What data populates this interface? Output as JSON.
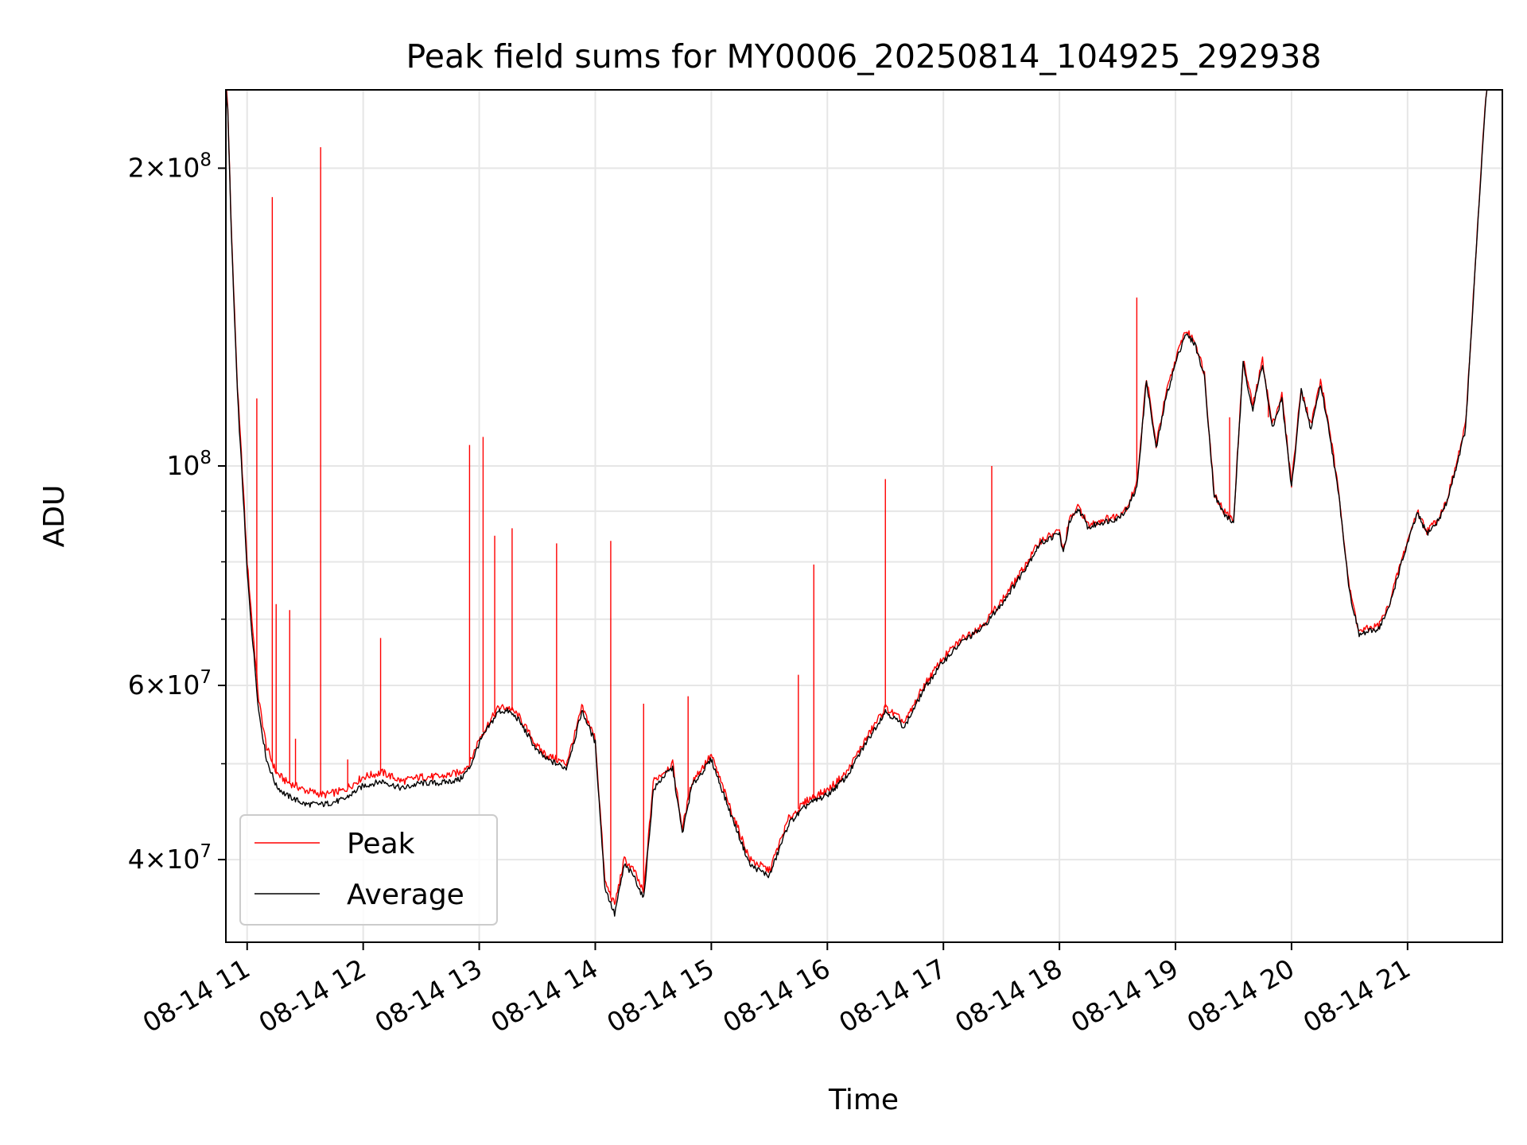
{
  "chart_data": {
    "type": "line",
    "title": "Peak field sums for MY0006_20250814_104925_292938",
    "xlabel": "Time",
    "ylabel": "ADU",
    "x_range": [
      "2025-08-14 10:49",
      "2025-08-14 21:49"
    ],
    "x_ticks": [
      {
        "t": "2025-08-14 11:00",
        "label": "08-14 11"
      },
      {
        "t": "2025-08-14 12:00",
        "label": "08-14 12"
      },
      {
        "t": "2025-08-14 13:00",
        "label": "08-14 13"
      },
      {
        "t": "2025-08-14 14:00",
        "label": "08-14 14"
      },
      {
        "t": "2025-08-14 15:00",
        "label": "08-14 15"
      },
      {
        "t": "2025-08-14 16:00",
        "label": "08-14 16"
      },
      {
        "t": "2025-08-14 17:00",
        "label": "08-14 17"
      },
      {
        "t": "2025-08-14 18:00",
        "label": "08-14 18"
      },
      {
        "t": "2025-08-14 19:00",
        "label": "08-14 19"
      },
      {
        "t": "2025-08-14 20:00",
        "label": "08-14 20"
      },
      {
        "t": "2025-08-14 21:00",
        "label": "08-14 21"
      }
    ],
    "y_scale": "log",
    "ylim": [
      33000000,
      240000000
    ],
    "y_major_ticks": [
      {
        "v": 40000000,
        "mant": "4",
        "exp": "7"
      },
      {
        "v": 60000000,
        "mant": "6",
        "exp": "7"
      },
      {
        "v": 100000000,
        "mant": "",
        "exp": "8"
      },
      {
        "v": 200000000,
        "mant": "2",
        "exp": "8"
      }
    ],
    "y_minor_ticks": [
      50000000,
      70000000,
      80000000,
      90000000
    ],
    "grid": true,
    "legend_position": "lower-left",
    "series": [
      {
        "name": "Peak",
        "color": "#ff0000",
        "x": [
          "10:48",
          "10:50",
          "10:52",
          "10:55",
          "10:58",
          "11:00",
          "11:03",
          "11:06",
          "11:10",
          "11:15",
          "11:20",
          "11:30",
          "11:40",
          "11:50",
          "12:00",
          "12:10",
          "12:20",
          "12:30",
          "12:40",
          "12:50",
          "12:55",
          "13:00",
          "13:05",
          "13:10",
          "13:15",
          "13:20",
          "13:25",
          "13:30",
          "13:35",
          "13:40",
          "13:45",
          "13:50",
          "13:53",
          "13:55",
          "14:00",
          "14:05",
          "14:10",
          "14:15",
          "14:20",
          "14:25",
          "14:30",
          "14:35",
          "14:40",
          "14:45",
          "14:50",
          "15:00",
          "15:10",
          "15:20",
          "15:30",
          "15:40",
          "15:50",
          "16:00",
          "16:10",
          "16:20",
          "16:30",
          "16:40",
          "16:50",
          "17:00",
          "17:10",
          "17:20",
          "17:30",
          "17:40",
          "17:50",
          "18:00",
          "18:02",
          "18:05",
          "18:10",
          "18:15",
          "18:20",
          "18:25",
          "18:30",
          "18:35",
          "18:40",
          "18:45",
          "18:50",
          "18:55",
          "19:00",
          "19:05",
          "19:10",
          "19:15",
          "19:20",
          "19:25",
          "19:30",
          "19:35",
          "19:40",
          "19:45",
          "19:50",
          "19:55",
          "20:00",
          "20:05",
          "20:10",
          "20:15",
          "20:20",
          "20:25",
          "20:30",
          "20:35",
          "20:40",
          "20:45",
          "20:50",
          "20:55",
          "21:00",
          "21:05",
          "21:10",
          "21:15",
          "21:20",
          "21:25",
          "21:30",
          "21:35",
          "21:40",
          "21:43"
        ],
        "y": [
          260000000,
          230000000,
          170000000,
          120000000,
          95000000,
          80000000,
          68000000,
          58000000,
          52000000,
          49000000,
          48000000,
          47000000,
          46500000,
          47000000,
          48500000,
          49000000,
          48000000,
          48500000,
          48500000,
          49000000,
          50000000,
          53000000,
          55000000,
          57000000,
          57000000,
          56000000,
          54000000,
          52000000,
          51000000,
          50500000,
          50000000,
          54000000,
          57000000,
          56000000,
          53000000,
          38000000,
          36000000,
          40000000,
          39000000,
          37000000,
          48000000,
          49000000,
          50000000,
          43000000,
          48000000,
          51000000,
          45000000,
          40000000,
          39000000,
          44000000,
          46000000,
          47000000,
          49000000,
          53000000,
          57000000,
          55000000,
          60000000,
          64000000,
          67000000,
          69000000,
          73000000,
          78000000,
          84000000,
          86000000,
          82000000,
          88000000,
          91000000,
          87000000,
          88000000,
          88500000,
          89000000,
          91000000,
          96000000,
          123000000,
          105000000,
          118000000,
          128000000,
          137000000,
          134000000,
          124000000,
          94000000,
          90000000,
          88000000,
          128000000,
          115000000,
          128000000,
          110000000,
          118000000,
          96000000,
          120000000,
          110000000,
          122000000,
          108000000,
          92000000,
          75000000,
          68000000,
          68500000,
          69000000,
          72000000,
          78000000,
          84000000,
          90000000,
          86000000,
          88000000,
          92000000,
          100000000,
          110000000,
          160000000,
          230000000,
          260000000
        ],
        "spikes": [
          {
            "x": "11:05",
            "y": 117000000
          },
          {
            "x": "11:13",
            "y": 187000000
          },
          {
            "x": "11:15",
            "y": 72500000
          },
          {
            "x": "11:22",
            "y": 71500000
          },
          {
            "x": "11:25",
            "y": 53000000
          },
          {
            "x": "11:38",
            "y": 210000000
          },
          {
            "x": "11:52",
            "y": 50500000
          },
          {
            "x": "12:09",
            "y": 67000000
          },
          {
            "x": "12:55",
            "y": 105000000
          },
          {
            "x": "13:02",
            "y": 107000000
          },
          {
            "x": "13:08",
            "y": 85000000
          },
          {
            "x": "13:17",
            "y": 86500000
          },
          {
            "x": "13:40",
            "y": 83500000
          },
          {
            "x": "14:08",
            "y": 84000000
          },
          {
            "x": "14:25",
            "y": 57500000
          },
          {
            "x": "14:48",
            "y": 58500000
          },
          {
            "x": "15:45",
            "y": 61500000
          },
          {
            "x": "15:53",
            "y": 79500000
          },
          {
            "x": "16:30",
            "y": 97000000
          },
          {
            "x": "17:25",
            "y": 100000000
          },
          {
            "x": "18:40",
            "y": 148000000
          },
          {
            "x": "19:28",
            "y": 112000000
          },
          {
            "x": "19:48",
            "y": 112000000
          }
        ]
      },
      {
        "name": "Average",
        "color": "#000000",
        "x": [
          "10:48",
          "10:50",
          "10:52",
          "10:55",
          "10:58",
          "11:00",
          "11:03",
          "11:06",
          "11:10",
          "11:15",
          "11:20",
          "11:30",
          "11:40",
          "11:50",
          "12:00",
          "12:10",
          "12:20",
          "12:30",
          "12:40",
          "12:50",
          "12:55",
          "13:00",
          "13:05",
          "13:10",
          "13:15",
          "13:20",
          "13:25",
          "13:30",
          "13:35",
          "13:40",
          "13:45",
          "13:50",
          "13:53",
          "13:55",
          "14:00",
          "14:05",
          "14:10",
          "14:15",
          "14:20",
          "14:25",
          "14:30",
          "14:35",
          "14:40",
          "14:45",
          "14:50",
          "15:00",
          "15:10",
          "15:20",
          "15:30",
          "15:40",
          "15:50",
          "16:00",
          "16:10",
          "16:20",
          "16:30",
          "16:40",
          "16:50",
          "17:00",
          "17:10",
          "17:20",
          "17:30",
          "17:40",
          "17:50",
          "18:00",
          "18:02",
          "18:05",
          "18:10",
          "18:15",
          "18:20",
          "18:25",
          "18:30",
          "18:35",
          "18:40",
          "18:45",
          "18:50",
          "18:55",
          "19:00",
          "19:05",
          "19:10",
          "19:15",
          "19:20",
          "19:25",
          "19:30",
          "19:35",
          "19:40",
          "19:45",
          "19:50",
          "19:55",
          "20:00",
          "20:05",
          "20:10",
          "20:15",
          "20:20",
          "20:25",
          "20:30",
          "20:35",
          "20:40",
          "20:45",
          "20:50",
          "20:55",
          "21:00",
          "21:05",
          "21:10",
          "21:15",
          "21:20",
          "21:25",
          "21:30",
          "21:35",
          "21:40",
          "21:43"
        ],
        "y": [
          258000000,
          228000000,
          168000000,
          118000000,
          93000000,
          78000000,
          66000000,
          56500000,
          50500000,
          47500000,
          46500000,
          45500000,
          45500000,
          46000000,
          47500000,
          48000000,
          47200000,
          47800000,
          47800000,
          48200000,
          49500000,
          52500000,
          54500000,
          56500000,
          56500000,
          55500000,
          53500000,
          51500000,
          50500000,
          50000000,
          49500000,
          53500000,
          56500000,
          55500000,
          52500000,
          37500000,
          35200000,
          39500000,
          38500000,
          36500000,
          47000000,
          48500000,
          49500000,
          42500000,
          47500000,
          50500000,
          44500000,
          39500000,
          38500000,
          43500000,
          45500000,
          46500000,
          48500000,
          52500000,
          56500000,
          54500000,
          59500000,
          63500000,
          66500000,
          68500000,
          72500000,
          77500000,
          83500000,
          85500000,
          81500000,
          87500000,
          90500000,
          86500000,
          87500000,
          88000000,
          88500000,
          90500000,
          95000000,
          122000000,
          104000000,
          117000000,
          127000000,
          136000000,
          133000000,
          123000000,
          93500000,
          89500000,
          87500000,
          127000000,
          114000000,
          127000000,
          109000000,
          117000000,
          95000000,
          119000000,
          109000000,
          121000000,
          107000000,
          91500000,
          74500000,
          67500000,
          68000000,
          68500000,
          71500000,
          77500000,
          83500000,
          89500000,
          85500000,
          87500000,
          91500000,
          99500000,
          109000000,
          159000000,
          229000000,
          259000000
        ]
      }
    ]
  }
}
